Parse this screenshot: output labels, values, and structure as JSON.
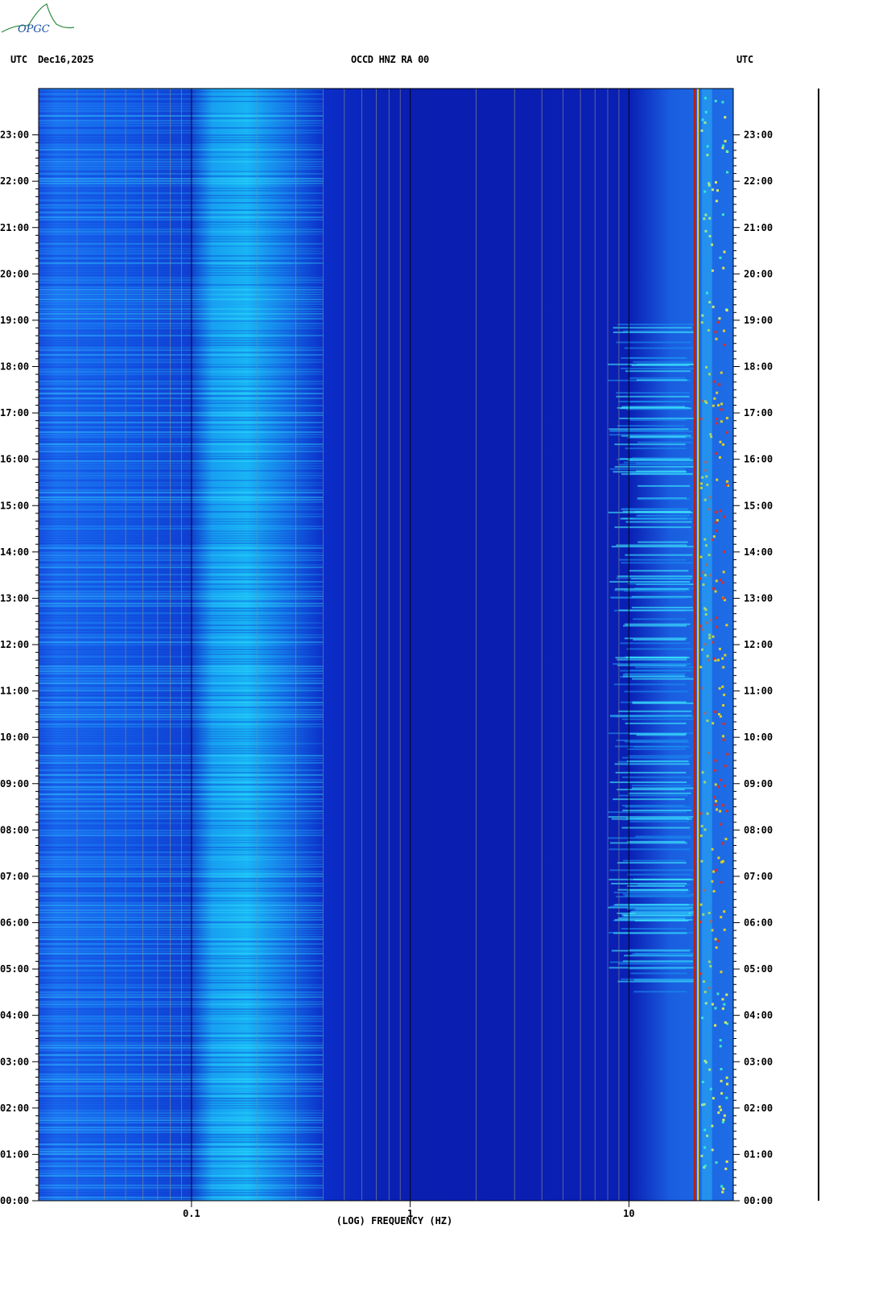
{
  "header": {
    "logo_text": "OPGC",
    "left_utc": "UTC",
    "date": "Dec16,2025",
    "station": "OCCD HNZ RA 00",
    "right_utc": "UTC"
  },
  "chart_data": {
    "type": "heatmap",
    "title": "OCCD HNZ RA 00",
    "date": "Dec16,2025",
    "xlabel": "(LOG) FREQUENCY (HZ)",
    "x_scale": "log",
    "xlim": [
      0.02,
      30
    ],
    "x_ticks": [
      {
        "value": 0.1,
        "label": "0.1"
      },
      {
        "value": 1,
        "label": "1"
      },
      {
        "value": 10,
        "label": "10"
      }
    ],
    "ylabel_left": "UTC",
    "ylabel_right": "UTC",
    "y_ticks": [
      "00:00",
      "01:00",
      "02:00",
      "03:00",
      "04:00",
      "05:00",
      "06:00",
      "07:00",
      "08:00",
      "09:00",
      "10:00",
      "11:00",
      "12:00",
      "13:00",
      "14:00",
      "15:00",
      "16:00",
      "17:00",
      "18:00",
      "19:00",
      "20:00",
      "21:00",
      "22:00",
      "23:00"
    ],
    "ylim_hours": [
      0,
      24
    ],
    "colormap": [
      "#00008b",
      "#0000ff",
      "#00bfff",
      "#00ffff",
      "#ffff00",
      "#ff0000",
      "#8b0000"
    ],
    "features": [
      {
        "name": "microseism band",
        "freq_range_hz": [
          0.12,
          0.32
        ]
      },
      {
        "name": "long-period band",
        "freq_range_hz": [
          0.02,
          0.05
        ]
      },
      {
        "name": "persistent line",
        "freq_hz": 20
      },
      {
        "name": "cultural noise",
        "freq_range_hz": [
          10,
          30
        ],
        "hours_active": [
          4.5,
          19
        ]
      }
    ]
  }
}
